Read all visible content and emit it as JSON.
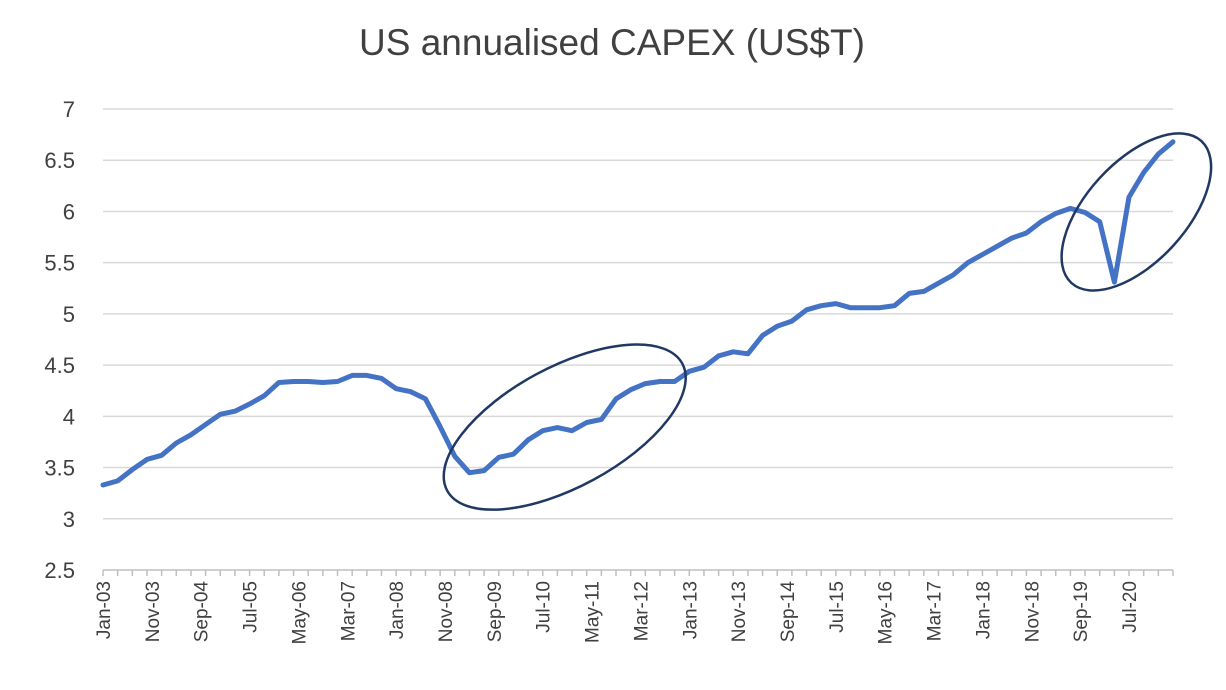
{
  "chart_data": {
    "type": "line",
    "title": "US annualised CAPEX (US$T)",
    "xlabel": "",
    "ylabel": "",
    "ylim": [
      2.5,
      7
    ],
    "yticks": [
      2.5,
      3,
      3.5,
      4,
      4.5,
      5,
      5.5,
      6,
      6.5,
      7
    ],
    "grid": true,
    "legend": "none",
    "x_tick_labels": [
      "Jan-03",
      "Nov-03",
      "Sep-04",
      "Jul-05",
      "May-06",
      "Mar-07",
      "Jan-08",
      "Nov-08",
      "Sep-09",
      "Jul-10",
      "May-11",
      "Mar-12",
      "Jan-13",
      "Nov-13",
      "Sep-14",
      "Jul-15",
      "May-16",
      "Mar-17",
      "Jan-18",
      "Nov-18",
      "Sep-19",
      "Jul-20"
    ],
    "series": [
      {
        "color": "#4472c4",
        "x": [
          "Jan-03",
          "Apr-03",
          "Jul-03",
          "Oct-03",
          "Jan-04",
          "Apr-04",
          "Jul-04",
          "Oct-04",
          "Jan-05",
          "Apr-05",
          "Jul-05",
          "Oct-05",
          "Jan-06",
          "Apr-06",
          "Jul-06",
          "Oct-06",
          "Jan-07",
          "Apr-07",
          "Jul-07",
          "Oct-07",
          "Jan-08",
          "Apr-08",
          "Jul-08",
          "Oct-08",
          "Jan-09",
          "Apr-09",
          "Jul-09",
          "Oct-09",
          "Jan-10",
          "Apr-10",
          "Jul-10",
          "Oct-10",
          "Jan-11",
          "Apr-11",
          "Jul-11",
          "Oct-11",
          "Jan-12",
          "Apr-12",
          "Jul-12",
          "Oct-12",
          "Jan-13",
          "Apr-13",
          "Jul-13",
          "Oct-13",
          "Jan-14",
          "Apr-14",
          "Jul-14",
          "Oct-14",
          "Jan-15",
          "Apr-15",
          "Jul-15",
          "Oct-15",
          "Jan-16",
          "Apr-16",
          "Jul-16",
          "Oct-16",
          "Jan-17",
          "Apr-17",
          "Jul-17",
          "Oct-17",
          "Jan-18",
          "Apr-18",
          "Jul-18",
          "Oct-18",
          "Jan-19",
          "Apr-19",
          "Jul-19",
          "Oct-19",
          "Jan-20",
          "Apr-20",
          "Jul-20",
          "Oct-20",
          "Jan-21",
          "Apr-21"
        ],
        "values": [
          3.33,
          3.37,
          3.48,
          3.58,
          3.62,
          3.74,
          3.82,
          3.92,
          4.02,
          4.05,
          4.12,
          4.2,
          4.33,
          4.34,
          4.34,
          4.33,
          4.34,
          4.4,
          4.4,
          4.37,
          4.27,
          4.24,
          4.17,
          3.9,
          3.61,
          3.45,
          3.47,
          3.6,
          3.63,
          3.77,
          3.86,
          3.89,
          3.86,
          3.94,
          3.97,
          4.17,
          4.26,
          4.32,
          4.34,
          4.34,
          4.44,
          4.48,
          4.59,
          4.63,
          4.61,
          4.79,
          4.88,
          4.93,
          5.04,
          5.08,
          5.1,
          5.06,
          5.06,
          5.06,
          5.08,
          5.2,
          5.22,
          5.3,
          5.38,
          5.5,
          5.58,
          5.66,
          5.74,
          5.79,
          5.9,
          5.98,
          6.03,
          5.99,
          5.9,
          5.31,
          6.14,
          6.38,
          6.56,
          6.68
        ]
      }
    ],
    "annotations": [
      {
        "type": "ellipse",
        "color": "#203864",
        "around_x": [
          "Jul-09",
          "Apr-12"
        ]
      },
      {
        "type": "ellipse",
        "color": "#203864",
        "around_x": [
          "Jan-20",
          "Apr-21"
        ]
      }
    ]
  }
}
